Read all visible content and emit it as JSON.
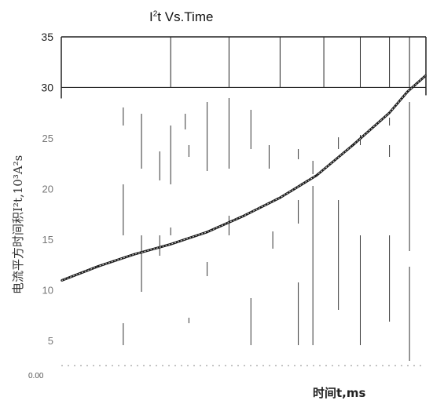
{
  "chart_data": {
    "type": "line",
    "title": {
      "base": "I",
      "sup": "2",
      "rest": "t  Vs.Time"
    },
    "ylabel": "电流平方时间积I²t,10³A²s",
    "xlabel": "时间t,ms",
    "x_origin_label": "0.00",
    "ylim": [
      2.5,
      35
    ],
    "y_ticks": [
      {
        "value": 35,
        "label": "35"
      },
      {
        "value": 30,
        "label": "30"
      },
      {
        "value": 25,
        "label": "25"
      },
      {
        "value": 20,
        "label": "20"
      },
      {
        "value": 15,
        "label": "15"
      },
      {
        "value": 10,
        "label": "10"
      },
      {
        "value": 5,
        "label": "5"
      }
    ],
    "grid": true,
    "series": [
      {
        "values": [
          {
            "x": 0.0,
            "y": 10.9
          },
          {
            "x": 0.1,
            "y": 12.3
          },
          {
            "x": 0.2,
            "y": 13.5
          },
          {
            "x": 0.3,
            "y": 14.5
          },
          {
            "x": 0.4,
            "y": 15.7
          },
          {
            "x": 0.5,
            "y": 17.3
          },
          {
            "x": 0.6,
            "y": 19.1
          },
          {
            "x": 0.7,
            "y": 21.3
          },
          {
            "x": 0.8,
            "y": 24.3
          },
          {
            "x": 0.9,
            "y": 27.5
          },
          {
            "x": 0.95,
            "y": 29.6
          },
          {
            "x": 1.0,
            "y": 31.2
          }
        ]
      }
    ]
  }
}
